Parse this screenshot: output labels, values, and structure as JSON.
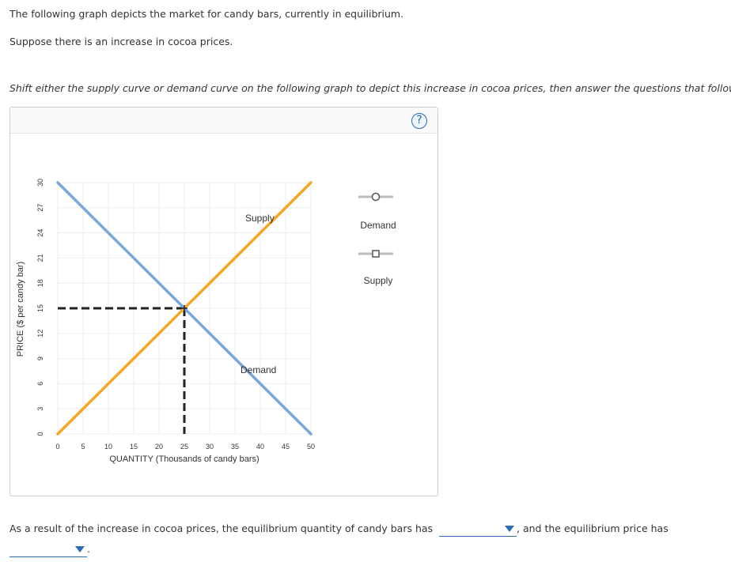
{
  "intro": {
    "line1": "The following graph depicts the market for candy bars, currently in equilibrium.",
    "line2": "Suppose there is an increase in cocoa prices.",
    "instruction": "Shift either the supply curve or demand curve on the following graph to depict this increase in cocoa prices, then answer the questions that follow."
  },
  "help": {
    "symbol": "?"
  },
  "palette": {
    "supply_color": "#f5a623",
    "demand_color": "#7aa7d9",
    "tool_line": "#bbbbbb",
    "tool_marker": "#555555"
  },
  "tools": [
    {
      "label": "Demand",
      "marker": "circle"
    },
    {
      "label": "Supply",
      "marker": "square"
    }
  ],
  "chart_data": {
    "type": "line",
    "xlabel": "QUANTITY (Thousands of candy bars)",
    "ylabel": "PRICE ($ per candy bar)",
    "xlim": [
      0,
      50
    ],
    "ylim": [
      0,
      30
    ],
    "xticks": [
      0,
      5,
      10,
      15,
      20,
      25,
      30,
      35,
      40,
      45,
      50
    ],
    "yticks": [
      0,
      3,
      6,
      9,
      12,
      15,
      18,
      21,
      24,
      27,
      30
    ],
    "grid": true,
    "series": [
      {
        "name": "Supply",
        "label": "Supply",
        "points": [
          [
            0,
            0
          ],
          [
            50,
            30
          ]
        ]
      },
      {
        "name": "Demand",
        "label": "Demand",
        "points": [
          [
            0,
            30
          ],
          [
            50,
            0
          ]
        ]
      }
    ],
    "equilibrium": {
      "x": 25,
      "y": 15
    }
  },
  "question": {
    "part1": "As a result of the increase in cocoa prices, the equilibrium quantity of candy bars has",
    "part2": ", and the equilibrium price has",
    "part3": ".",
    "dropdown1": "",
    "dropdown2": ""
  }
}
